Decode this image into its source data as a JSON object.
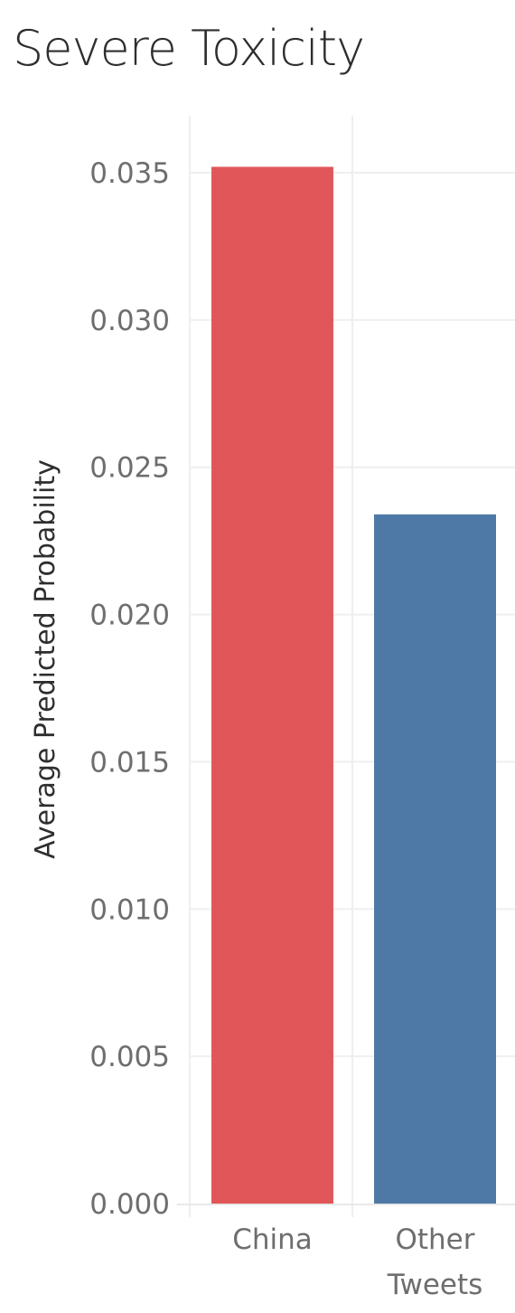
{
  "chart_data": {
    "type": "bar",
    "title": "Severe Toxicity",
    "xlabel": "",
    "ylabel": "Average Predicted Probability",
    "categories": [
      "China",
      "Other Tweets"
    ],
    "values": [
      0.0352,
      0.0234
    ],
    "colors": [
      "#E15759",
      "#4E79A7"
    ],
    "ylim": [
      0,
      0.035
    ],
    "yticks": [
      "0.000",
      "0.005",
      "0.010",
      "0.015",
      "0.020",
      "0.025",
      "0.030",
      "0.035"
    ],
    "grid": true,
    "legend": "none"
  }
}
